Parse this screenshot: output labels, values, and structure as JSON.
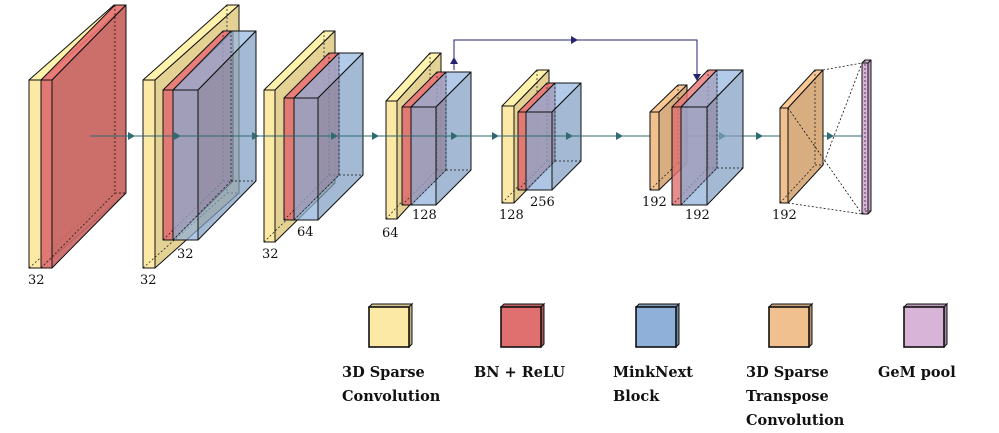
{
  "colors": {
    "conv": "#fde9a6",
    "bn_relu": "#e07070",
    "minknext": "#8fb0d8",
    "transpose": "#f0c08e",
    "gem": "#d8b4d8",
    "flow_arrow": "#2f6b70",
    "skip_arrow": "#23236e"
  },
  "labels": {
    "l1": "32",
    "l2a": "32",
    "l2b": "32",
    "l3a": "32",
    "l3b": "64",
    "l4a": "64",
    "l4b": "128",
    "l5a": "128",
    "l5b": "256",
    "l6a": "192",
    "l6b": "192",
    "l7": "192"
  },
  "legend": [
    {
      "key": "conv",
      "label": "3D Sparse\nConvolution"
    },
    {
      "key": "bn_relu",
      "label": "BN + ReLU"
    },
    {
      "key": "minknext",
      "label": "MinkNext\nBlock"
    },
    {
      "key": "transpose",
      "label": "3D Sparse\nTranspose\nConvolution"
    },
    {
      "key": "gem",
      "label": "GeM pool"
    }
  ]
}
